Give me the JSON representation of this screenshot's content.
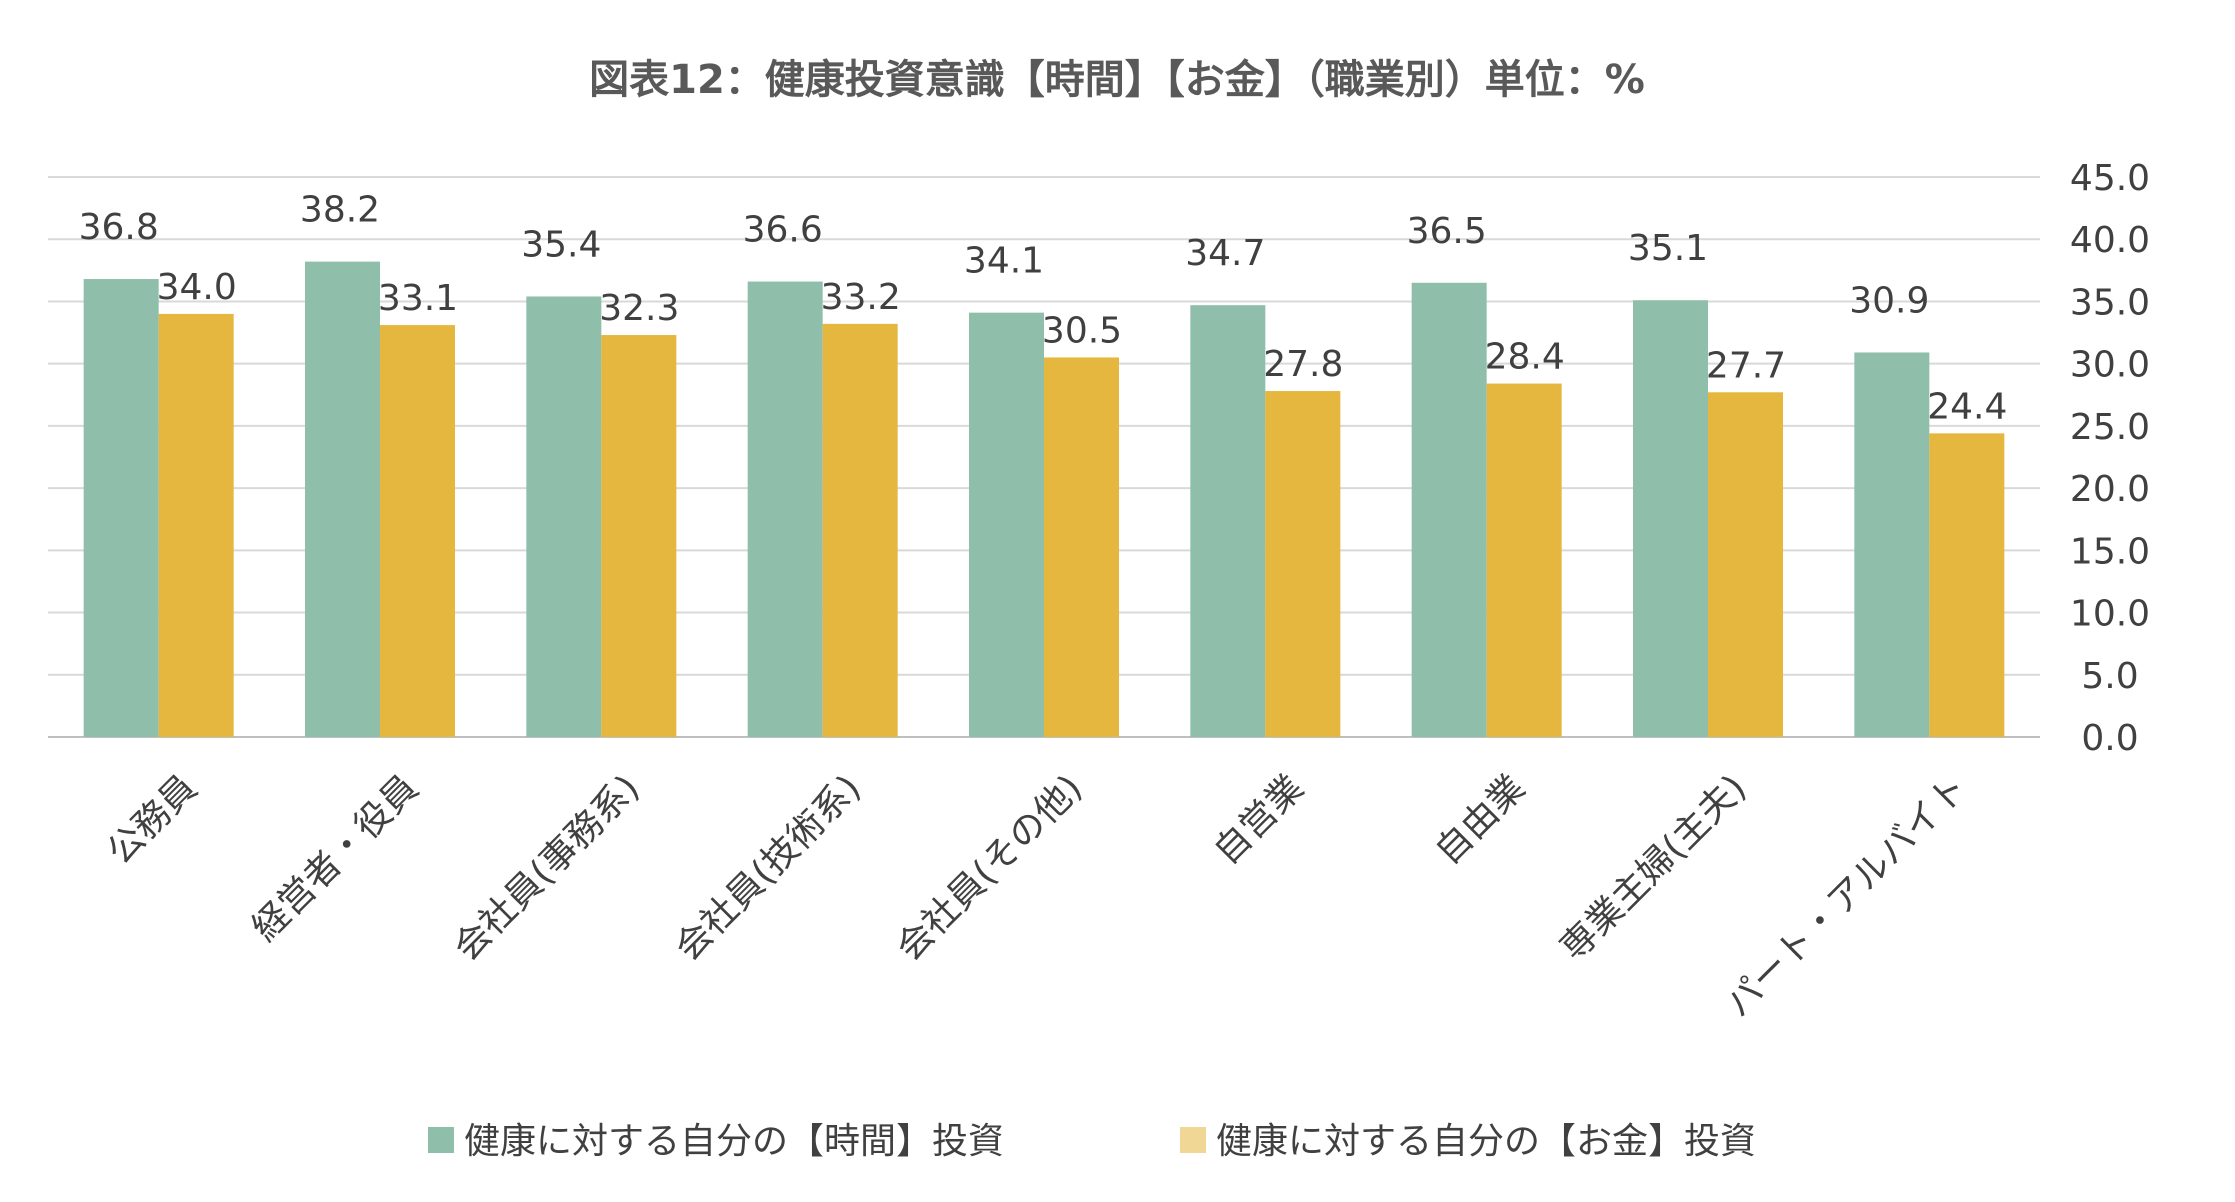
{
  "chart_data": {
    "type": "bar",
    "title": "図表12：健康投資意識【時間】【お金】（職業別）単位：%",
    "xlabel": "",
    "ylabel": "",
    "ylim": [
      0,
      45
    ],
    "y_ticks": [
      "0.0",
      "5.0",
      "10.0",
      "15.0",
      "20.0",
      "25.0",
      "30.0",
      "35.0",
      "40.0",
      "45.0"
    ],
    "y_axis_side": "right",
    "grid": true,
    "legend_position": "bottom",
    "categories": [
      "公務員",
      "経営者・役員",
      "会社員(事務系)",
      "会社員(技術系)",
      "会社員(その他)",
      "自営業",
      "自由業",
      "専業主婦(主夫)",
      "パート・アルバイト"
    ],
    "series": [
      {
        "name": "健康に対する自分の【時間】投資",
        "color": "#8fbeab",
        "values": [
          36.8,
          38.2,
          35.4,
          36.6,
          34.1,
          34.7,
          36.5,
          35.1,
          30.9
        ]
      },
      {
        "name": "健康に対する自分の【お金】投資",
        "color": "#e5b73f",
        "values": [
          34.0,
          33.1,
          32.3,
          33.2,
          30.5,
          27.8,
          28.4,
          27.7,
          24.4
        ]
      }
    ]
  }
}
